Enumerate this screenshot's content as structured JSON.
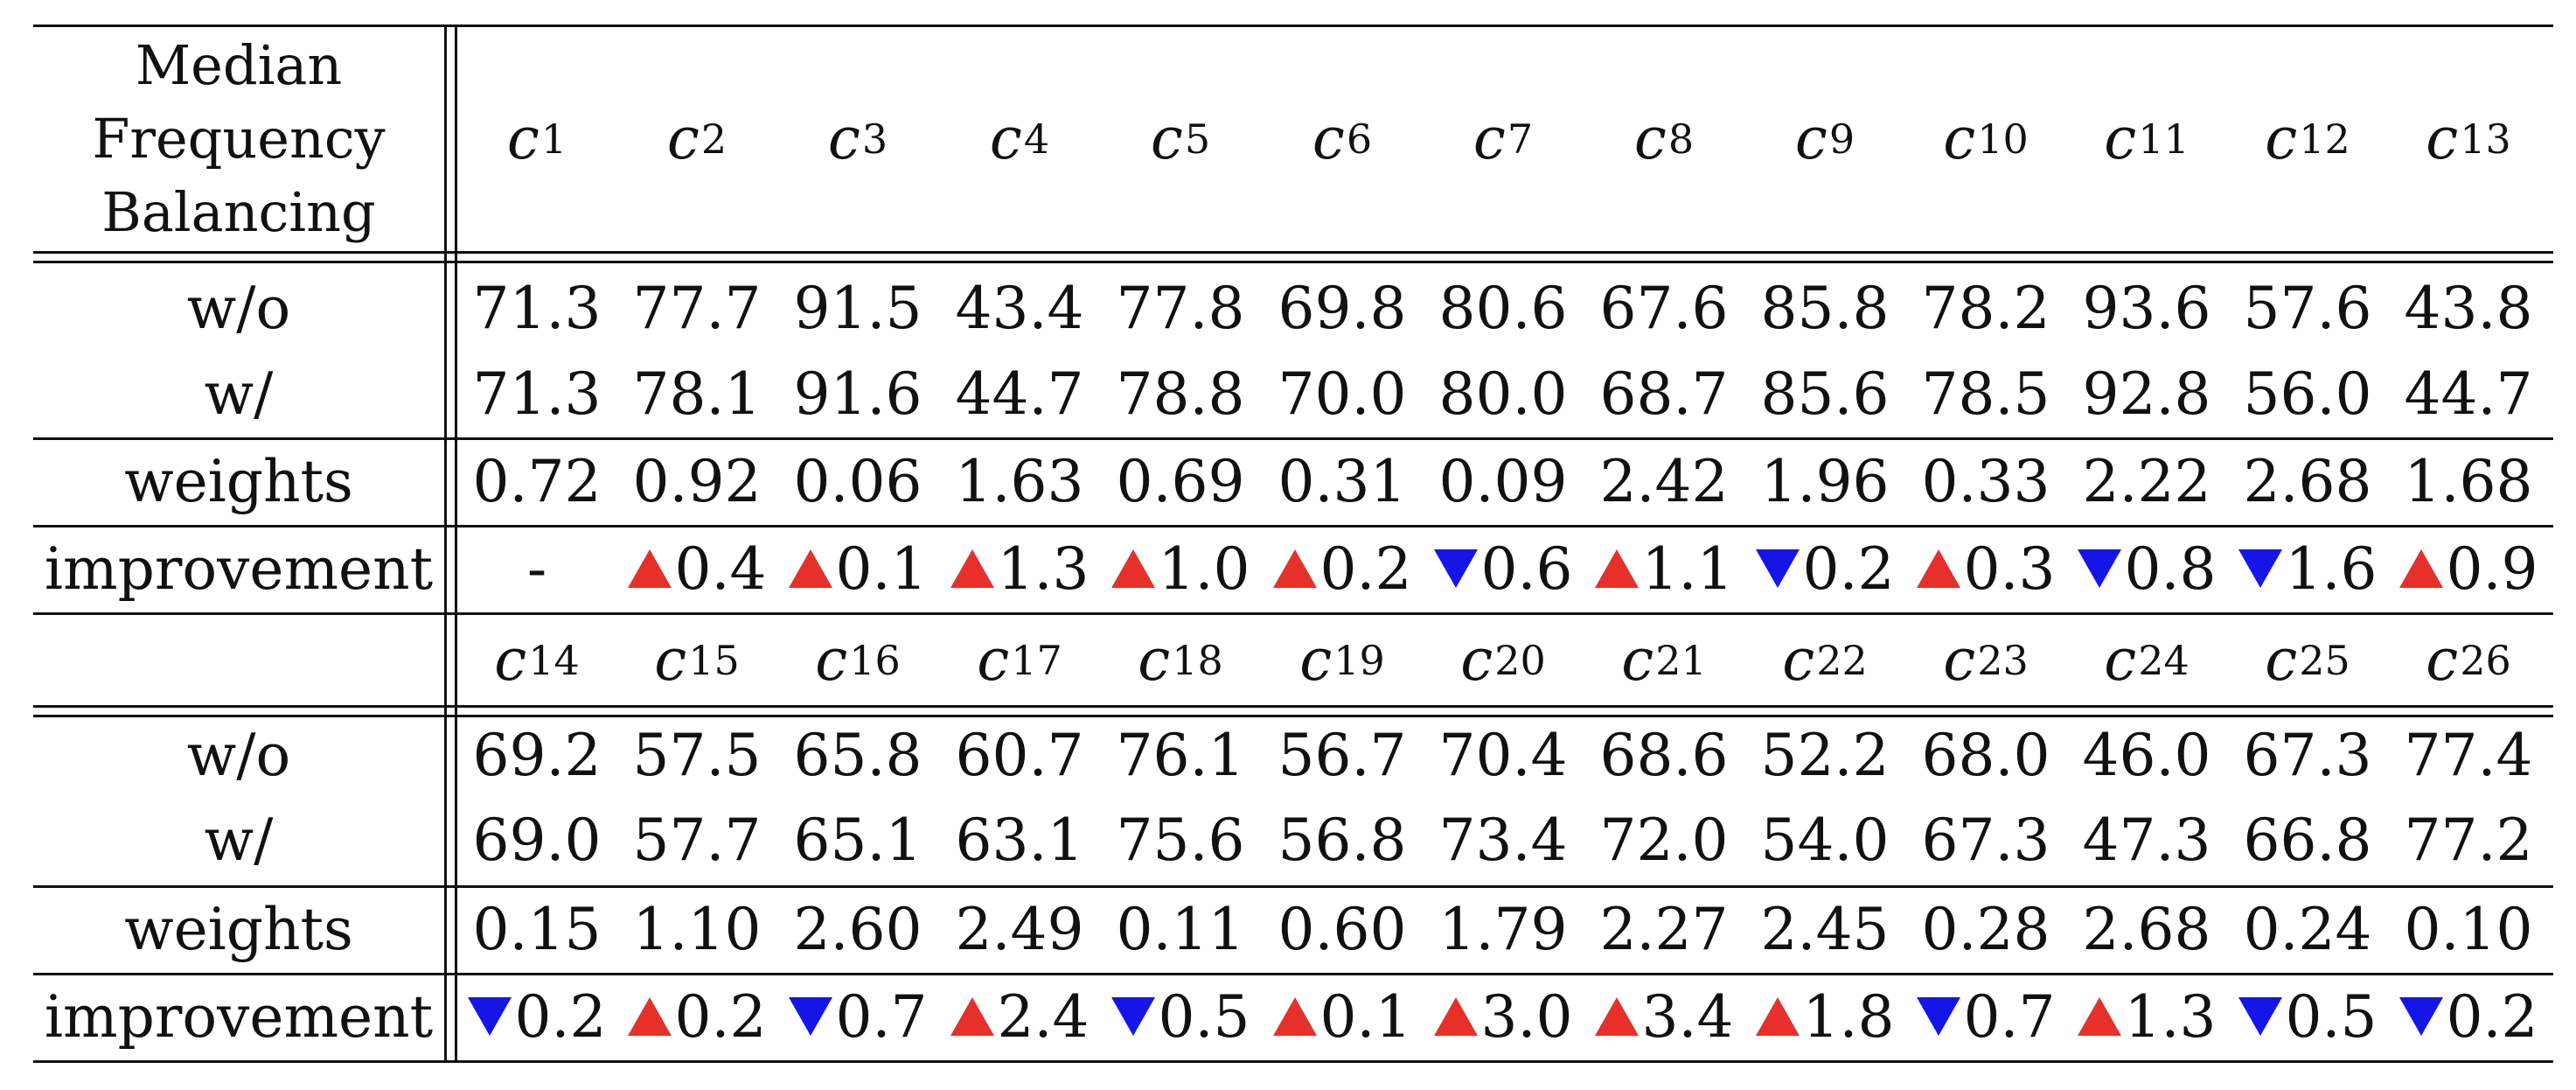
{
  "header_label": [
    "Median",
    "Frequency",
    "Balancing"
  ],
  "blocks": [
    {
      "columns": [
        "1",
        "2",
        "3",
        "4",
        "5",
        "6",
        "7",
        "8",
        "9",
        "10",
        "11",
        "12",
        "13"
      ],
      "rows": [
        {
          "label": "w/o",
          "values": [
            "71.3",
            "77.7",
            "91.5",
            "43.4",
            "77.8",
            "69.8",
            "80.6",
            "67.6",
            "85.8",
            "78.2",
            "93.6",
            "57.6",
            "43.8"
          ]
        },
        {
          "label": "w/",
          "values": [
            "71.3",
            "78.1",
            "91.6",
            "44.7",
            "78.8",
            "70.0",
            "80.0",
            "68.7",
            "85.6",
            "78.5",
            "92.8",
            "56.0",
            "44.7"
          ]
        },
        {
          "label": "weights",
          "values": [
            "0.72",
            "0.92",
            "0.06",
            "1.63",
            "0.69",
            "0.31",
            "0.09",
            "2.42",
            "1.96",
            "0.33",
            "2.22",
            "2.68",
            "1.68"
          ]
        },
        {
          "label": "improvement",
          "values": [
            {
              "dir": "none",
              "value": "-"
            },
            {
              "dir": "up",
              "value": "0.4"
            },
            {
              "dir": "up",
              "value": "0.1"
            },
            {
              "dir": "up",
              "value": "1.3"
            },
            {
              "dir": "up",
              "value": "1.0"
            },
            {
              "dir": "up",
              "value": "0.2"
            },
            {
              "dir": "down",
              "value": "0.6"
            },
            {
              "dir": "up",
              "value": "1.1"
            },
            {
              "dir": "down",
              "value": "0.2"
            },
            {
              "dir": "up",
              "value": "0.3"
            },
            {
              "dir": "down",
              "value": "0.8"
            },
            {
              "dir": "down",
              "value": "1.6"
            },
            {
              "dir": "up",
              "value": "0.9"
            }
          ]
        }
      ]
    },
    {
      "columns": [
        "14",
        "15",
        "16",
        "17",
        "18",
        "19",
        "20",
        "21",
        "22",
        "23",
        "24",
        "25",
        "26"
      ],
      "rows": [
        {
          "label": "w/o",
          "values": [
            "69.2",
            "57.5",
            "65.8",
            "60.7",
            "76.1",
            "56.7",
            "70.4",
            "68.6",
            "52.2",
            "68.0",
            "46.0",
            "67.3",
            "77.4"
          ]
        },
        {
          "label": "w/",
          "values": [
            "69.0",
            "57.7",
            "65.1",
            "63.1",
            "75.6",
            "56.8",
            "73.4",
            "72.0",
            "54.0",
            "67.3",
            "47.3",
            "66.8",
            "77.2"
          ]
        },
        {
          "label": "weights",
          "values": [
            "0.15",
            "1.10",
            "2.60",
            "2.49",
            "0.11",
            "0.60",
            "1.79",
            "2.27",
            "2.45",
            "0.28",
            "2.68",
            "0.24",
            "0.10"
          ]
        },
        {
          "label": "improvement",
          "values": [
            {
              "dir": "down",
              "value": "0.2"
            },
            {
              "dir": "up",
              "value": "0.2"
            },
            {
              "dir": "down",
              "value": "0.7"
            },
            {
              "dir": "up",
              "value": "2.4"
            },
            {
              "dir": "down",
              "value": "0.5"
            },
            {
              "dir": "up",
              "value": "0.1"
            },
            {
              "dir": "up",
              "value": "3.0"
            },
            {
              "dir": "up",
              "value": "3.4"
            },
            {
              "dir": "up",
              "value": "1.8"
            },
            {
              "dir": "down",
              "value": "0.7"
            },
            {
              "dir": "up",
              "value": "1.3"
            },
            {
              "dir": "down",
              "value": "0.5"
            },
            {
              "dir": "down",
              "value": "0.2"
            }
          ]
        }
      ]
    }
  ],
  "colors": {
    "up": "#e8302a",
    "down": "#1515e8"
  }
}
